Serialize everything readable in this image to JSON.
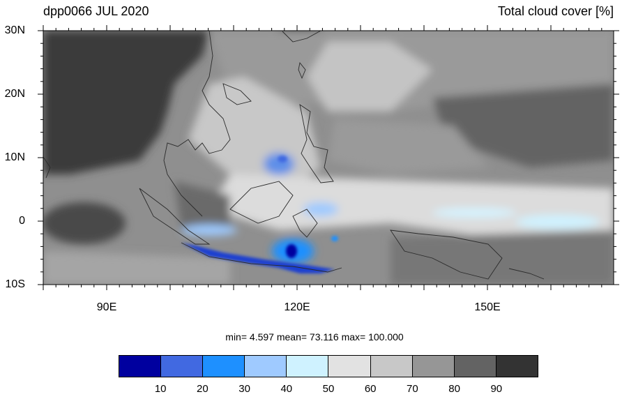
{
  "map": {
    "title_left": "dpp0066 JUL 2020",
    "title_right": "Total cloud cover [%]",
    "lat_labels": [
      "30N",
      "20N",
      "10N",
      "0",
      "10S"
    ],
    "lon_labels": [
      "90E",
      "120E",
      "150E"
    ],
    "stats": "min=   4.597  mean=  73.116  max= 100.000"
  },
  "colorbar": {
    "labels": [
      "10",
      "20",
      "30",
      "40",
      "50",
      "60",
      "70",
      "80",
      "90"
    ],
    "colors": [
      "#00009f",
      "#4169e1",
      "#1e90ff",
      "#9fcaff",
      "#cff2ff",
      "#e2e2e2",
      "#c8c8c8",
      "#969696",
      "#636363",
      "#333333"
    ]
  }
}
